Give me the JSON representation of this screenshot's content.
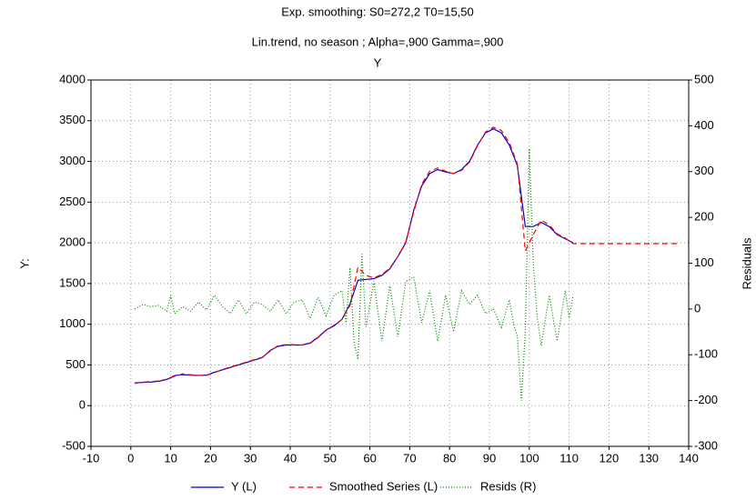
{
  "chart_data": {
    "type": "line",
    "title": "Exp. smoothing:  S0=272,2 T0=15,50",
    "subtitle": "Lin.trend, no season   ; Alpha=,900 Gamma=,900",
    "subtitle2": "Y",
    "ylabel": "Y:",
    "y2label": "Residuals",
    "xlim": [
      -10,
      140
    ],
    "xticks": [
      -10,
      0,
      10,
      20,
      30,
      40,
      50,
      60,
      70,
      80,
      90,
      100,
      110,
      120,
      130,
      140
    ],
    "ylim": [
      -500,
      4000
    ],
    "yticks": [
      -500,
      0,
      500,
      1000,
      1500,
      2000,
      2500,
      3000,
      3500,
      4000
    ],
    "y2lim": [
      -300,
      500
    ],
    "y2ticks": [
      -300,
      -200,
      -100,
      0,
      100,
      200,
      300,
      400,
      500
    ],
    "grid": true,
    "legend": "bottom",
    "series": [
      {
        "name": "Y (L)",
        "color": "#0000cc",
        "style": "solid",
        "x": [
          1,
          3,
          5,
          7,
          9,
          11,
          13,
          15,
          17,
          19,
          21,
          23,
          25,
          27,
          29,
          31,
          33,
          35,
          37,
          39,
          41,
          43,
          45,
          47,
          49,
          51,
          53,
          55,
          57,
          59,
          61,
          63,
          65,
          67,
          69,
          71,
          73,
          75,
          77,
          79,
          81,
          83,
          85,
          87,
          89,
          91,
          93,
          95,
          97,
          99,
          101,
          103,
          105,
          107,
          109,
          111
        ],
        "values": [
          280,
          285,
          290,
          300,
          320,
          370,
          380,
          375,
          370,
          375,
          410,
          440,
          470,
          500,
          530,
          560,
          590,
          680,
          730,
          745,
          745,
          745,
          770,
          840,
          930,
          980,
          1060,
          1250,
          1540,
          1550,
          1560,
          1600,
          1680,
          1830,
          2000,
          2400,
          2700,
          2850,
          2900,
          2870,
          2850,
          2900,
          3000,
          3200,
          3350,
          3400,
          3350,
          3200,
          2950,
          2200,
          2200,
          2250,
          2200,
          2100,
          2050,
          2000
        ]
      },
      {
        "name": "Smoothed Series (L)",
        "color": "#ff0000",
        "style": "dashed",
        "x": [
          1,
          3,
          5,
          7,
          9,
          11,
          13,
          15,
          17,
          19,
          21,
          23,
          25,
          27,
          29,
          31,
          33,
          35,
          37,
          39,
          41,
          43,
          45,
          47,
          49,
          51,
          53,
          55,
          57,
          59,
          61,
          63,
          65,
          67,
          69,
          71,
          73,
          75,
          77,
          79,
          81,
          83,
          85,
          87,
          89,
          91,
          93,
          95,
          97,
          99,
          101,
          103,
          105,
          107,
          109,
          111,
          113,
          117,
          121,
          125,
          129,
          133,
          137
        ],
        "values": [
          272,
          290,
          295,
          305,
          325,
          360,
          390,
          380,
          372,
          372,
          405,
          445,
          475,
          505,
          535,
          565,
          595,
          670,
          740,
          750,
          748,
          745,
          765,
          835,
          925,
          990,
          1060,
          1230,
          1700,
          1600,
          1570,
          1610,
          1690,
          1830,
          2010,
          2380,
          2720,
          2880,
          2920,
          2880,
          2850,
          2890,
          2990,
          3190,
          3360,
          3420,
          3380,
          3230,
          2970,
          1900,
          2100,
          2280,
          2220,
          2110,
          2060,
          1990,
          1990,
          1990,
          1990,
          1990,
          1990,
          1990,
          1990
        ]
      },
      {
        "name": "Resids (R)",
        "color": "#008800",
        "style": "dotted",
        "axis": "y2",
        "x": [
          1,
          3,
          5,
          7,
          9,
          10,
          11,
          13,
          15,
          17,
          19,
          21,
          23,
          25,
          27,
          29,
          31,
          33,
          35,
          37,
          39,
          41,
          43,
          45,
          47,
          49,
          51,
          53,
          54,
          55,
          56,
          57,
          58,
          59,
          61,
          63,
          65,
          67,
          69,
          71,
          73,
          75,
          77,
          79,
          81,
          83,
          85,
          87,
          89,
          91,
          93,
          95,
          96,
          97,
          98,
          99,
          100,
          101,
          102,
          103,
          105,
          107,
          109,
          110,
          111
        ],
        "values": [
          0,
          10,
          5,
          8,
          -5,
          30,
          -10,
          5,
          -5,
          15,
          -2,
          30,
          5,
          -10,
          20,
          -10,
          15,
          10,
          -5,
          20,
          -10,
          15,
          20,
          -20,
          25,
          -15,
          30,
          40,
          -30,
          90,
          -70,
          -110,
          120,
          -40,
          60,
          -70,
          50,
          -60,
          60,
          70,
          -30,
          40,
          -70,
          30,
          -50,
          40,
          10,
          30,
          -10,
          0,
          -40,
          20,
          -30,
          -60,
          -200,
          -50,
          350,
          100,
          -20,
          -80,
          30,
          -70,
          40,
          -20,
          30
        ]
      }
    ]
  }
}
